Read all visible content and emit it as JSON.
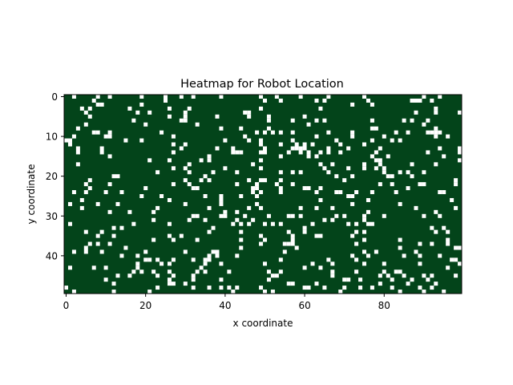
{
  "chart_data": {
    "type": "heatmap",
    "title": "Heatmap for Robot Location",
    "xlabel": "x coordinate",
    "ylabel": "y coordinate",
    "cols": 100,
    "rows": 50,
    "x_ticks": [
      0,
      20,
      40,
      60,
      80
    ],
    "y_ticks": [
      0,
      10,
      20,
      30,
      40
    ],
    "y_axis_inverted": true,
    "grid": false,
    "legend": "none",
    "occupied_color": "#03441a",
    "free_color": "#ffffff",
    "free_cell_density": 0.1,
    "note_on_values": "Binary grid: dark green = value 1, white = value 0; roughly 10% of cells are white, scattered across the map."
  }
}
